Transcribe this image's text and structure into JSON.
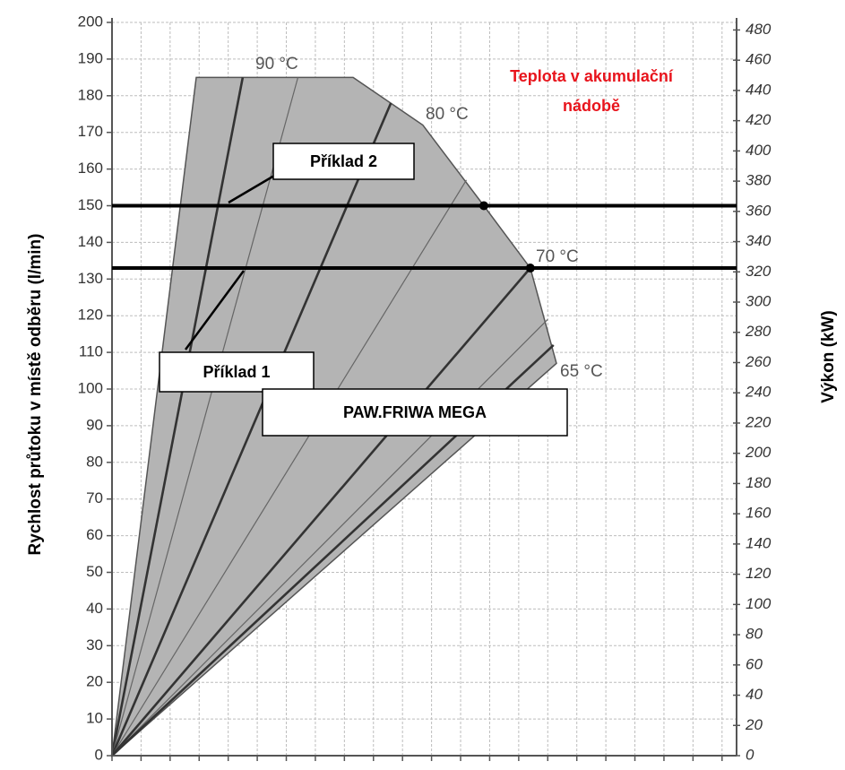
{
  "chart_data": {
    "type": "area",
    "ylabel": "Rychlost průtoku v místě odběru (l/min)",
    "y2label": "Výkon (kW)",
    "xlim": [
      0,
      21.5
    ],
    "xticks": [
      0,
      1,
      2,
      3,
      4,
      5,
      6,
      7,
      8,
      9,
      10,
      11,
      12,
      13,
      14,
      15,
      16,
      17,
      18,
      19,
      20,
      21
    ],
    "ylim": [
      0,
      200
    ],
    "yticks": [
      0,
      10,
      20,
      30,
      40,
      50,
      60,
      70,
      80,
      90,
      100,
      110,
      120,
      130,
      140,
      150,
      160,
      170,
      180,
      190,
      200
    ],
    "y2lim": [
      0,
      485
    ],
    "y2ticks": [
      0,
      20,
      40,
      60,
      80,
      100,
      120,
      140,
      160,
      180,
      200,
      220,
      240,
      260,
      280,
      300,
      320,
      340,
      360,
      380,
      400,
      420,
      440,
      460,
      480
    ],
    "grid": true,
    "region": {
      "color": "#b4b4b4",
      "x": [
        0,
        2.9,
        8.3,
        10.7,
        12.8,
        14.4,
        15.3
      ],
      "y": [
        0,
        185,
        185,
        172,
        150,
        133,
        107
      ]
    },
    "lines": [
      {
        "x": [
          0,
          4.5
        ],
        "y": [
          0,
          185
        ],
        "thick": true
      },
      {
        "x": [
          0,
          6.4
        ],
        "y": [
          0,
          185
        ],
        "thick": false
      },
      {
        "x": [
          0,
          9.6
        ],
        "y": [
          0,
          178
        ],
        "thick": true
      },
      {
        "x": [
          0,
          12.2
        ],
        "y": [
          0,
          157
        ],
        "thick": false
      },
      {
        "x": [
          0,
          14.4
        ],
        "y": [
          0,
          133
        ],
        "thick": true
      },
      {
        "x": [
          0,
          15.0
        ],
        "y": [
          0,
          119
        ],
        "thick": false
      },
      {
        "x": [
          0,
          15.2
        ],
        "y": [
          0,
          112
        ],
        "thick": true
      }
    ],
    "reference_lines": {
      "values": [
        150,
        133
      ],
      "color": "#000000"
    },
    "points": {
      "x": [
        12.8,
        14.4
      ],
      "y": [
        150,
        133
      ]
    },
    "temperature_labels": [
      "90 °C",
      "80 °C",
      "70 °C",
      "65 °C"
    ],
    "annotation": [
      "Teplota v akumulační",
      "nádobě"
    ],
    "annotation_color": "#e8141c",
    "examples": [
      "Příklad 2",
      "Příklad 1"
    ],
    "product": "PAW.FRIWA MEGA"
  }
}
